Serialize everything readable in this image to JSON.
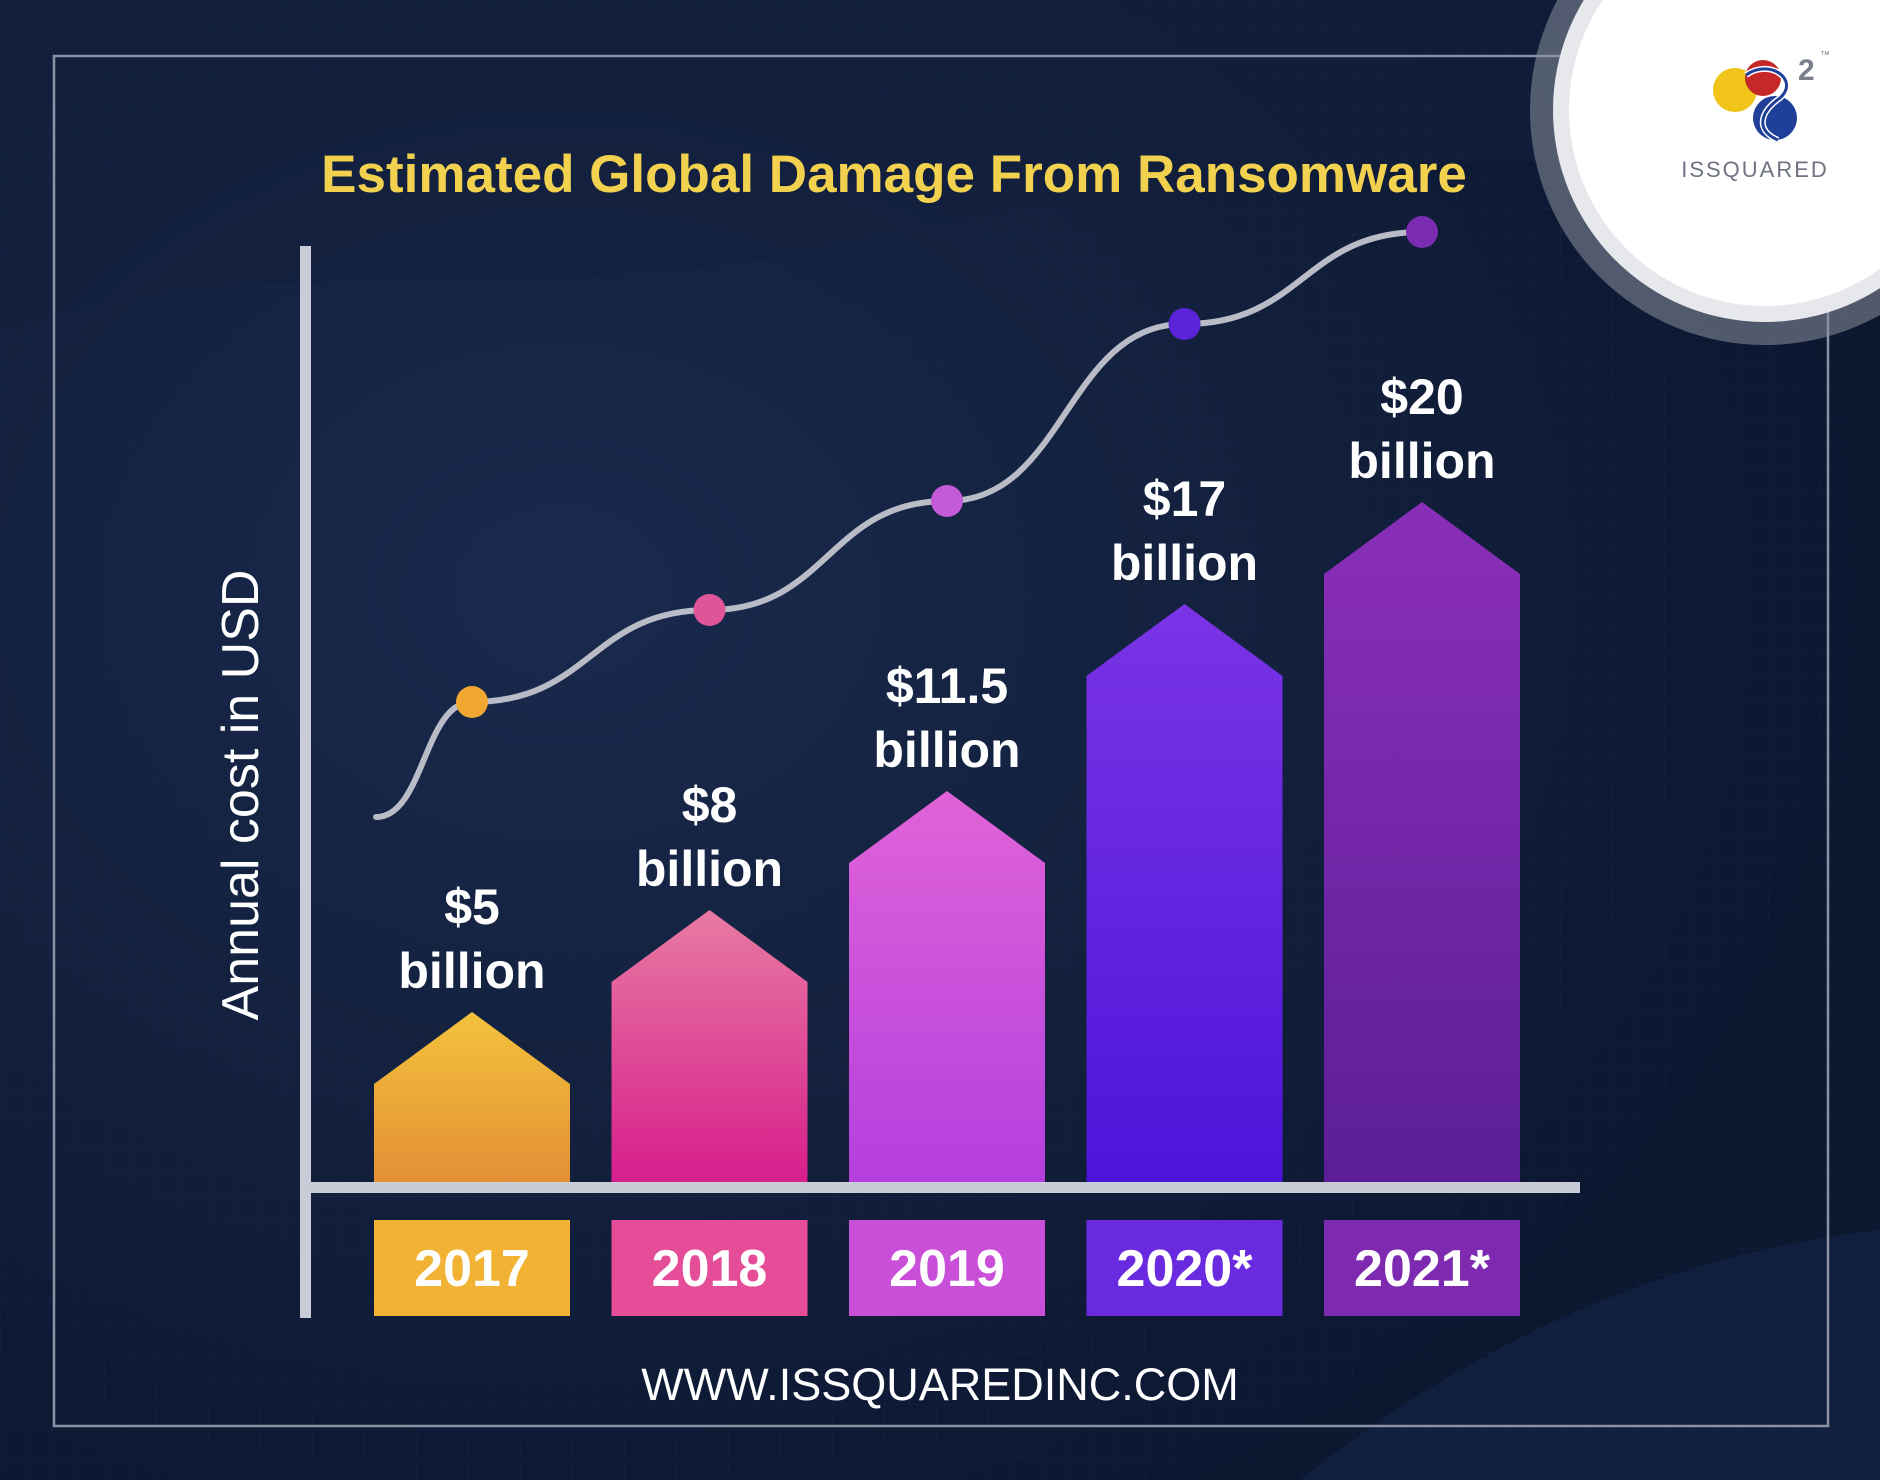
{
  "chart_data": {
    "type": "bar",
    "title": "Estimated Global Damage From Ransomware",
    "ylabel": "Annual cost in USD",
    "categories": [
      "2017",
      "2018",
      "2019",
      "2020*",
      "2021*"
    ],
    "values": [
      5,
      8,
      11.5,
      17,
      20
    ],
    "value_labels": [
      [
        "$5",
        "billion"
      ],
      [
        "$8",
        "billion"
      ],
      [
        "$11.5",
        "billion"
      ],
      [
        "$17",
        "billion"
      ],
      [
        "$20",
        "billion"
      ]
    ],
    "colors": [
      "#f2b233",
      "#e64d98",
      "#c94fd8",
      "#6a2be0",
      "#7d2ab0"
    ],
    "gradient_light": [
      "#f4c23c",
      "#e87aa2",
      "#e063d8",
      "#7b34e6",
      "#8a2fb8"
    ],
    "gradient_dark": [
      "#e38f35",
      "#d61e8c",
      "#b43fde",
      "#4d14d9",
      "#5b1e96"
    ],
    "trend_marker_colors": [
      "#f0a830",
      "#e0559a",
      "#c35ad6",
      "#5a23d8",
      "#7a2bb0"
    ],
    "ylim": [
      0,
      25
    ],
    "grid": false,
    "legend": "none"
  },
  "footer": {
    "url": "WWW.ISSQUAREDINC.COM"
  },
  "logo": {
    "wordmark": "ISSQUARED",
    "superscript": "2",
    "tm": "™"
  },
  "theme": {
    "background": "#0f1b33",
    "title_color": "#f2d14e",
    "text_color": "#ffffff",
    "axis_color": "#c9ccd6",
    "frame_color": "#8c92a6"
  }
}
